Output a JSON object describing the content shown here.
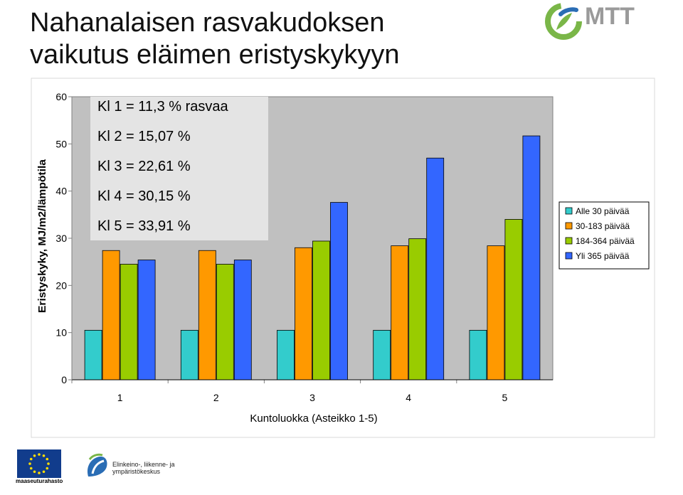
{
  "title": {
    "line1": "Nahanalaisen rasvakudoksen",
    "line2": "vaikutus eläimen eristyskykyyn"
  },
  "logos": {
    "mtt": "MTT",
    "eu_caption": "maaseuturahasto",
    "ely_line1": "Elinkeino-, liikenne- ja",
    "ely_line2": "ympäristökeskus"
  },
  "colors": {
    "plot_bg": "#c0c0c0",
    "box_bg": "#e4e4e4",
    "brand_green": "#7ab648",
    "brand_blue": "#2a6db5"
  },
  "chart_data": {
    "type": "bar",
    "title": "",
    "xlabel": "Kuntoluokka (Asteikko 1-5)",
    "ylabel": "Eristyskyky, MJ/m2/lämpötila",
    "categories": [
      "1",
      "2",
      "3",
      "4",
      "5"
    ],
    "ylim": [
      0,
      60
    ],
    "yticks": [
      0,
      10,
      20,
      30,
      40,
      50,
      60
    ],
    "grid": false,
    "legend_position": "right",
    "series": [
      {
        "name": "Alle 30 päivää",
        "color": "#33cccc",
        "values": [
          10.5,
          10.5,
          10.5,
          10.5,
          10.5
        ]
      },
      {
        "name": "30-183 päivää",
        "color": "#ff9900",
        "values": [
          27.4,
          27.4,
          28.0,
          28.4,
          28.4
        ]
      },
      {
        "name": "184-364 päivää",
        "color": "#99cc00",
        "values": [
          24.5,
          24.5,
          29.4,
          29.9,
          34.0
        ]
      },
      {
        "name": "Yli 365 päivää",
        "color": "#3366ff",
        "values": [
          25.4,
          25.4,
          37.6,
          47.0,
          51.7
        ]
      }
    ],
    "annotations": [
      "Kl 1 = 11,3 % rasvaa",
      "Kl 2 = 15,07 %",
      "Kl 3 = 22,61 %",
      "Kl 4 = 30,15 %",
      "Kl 5 = 33,91 %"
    ]
  }
}
